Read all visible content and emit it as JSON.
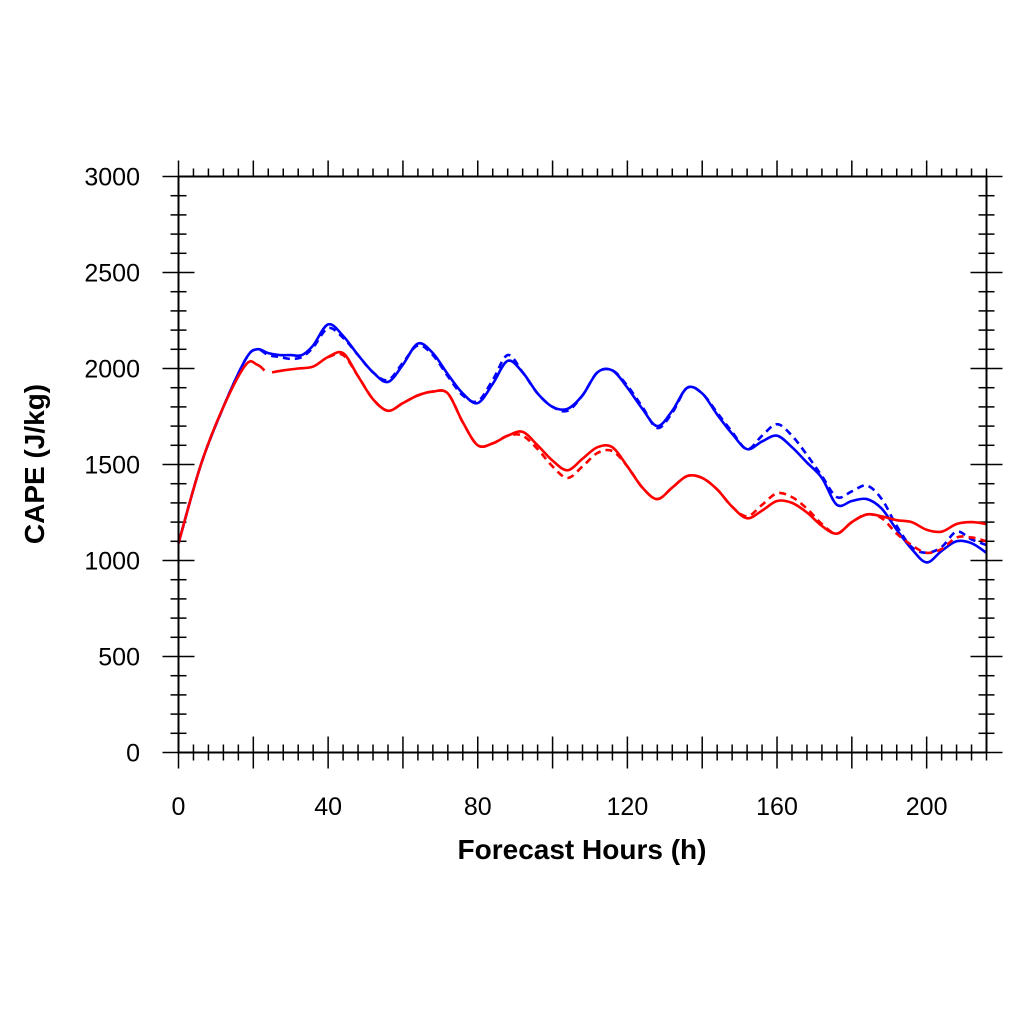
{
  "chart_data": {
    "type": "line",
    "title": "",
    "xlabel": "Forecast Hours (h)",
    "ylabel": "CAPE (J/kg)",
    "xlim": [
      0,
      216
    ],
    "ylim": [
      0,
      3000
    ],
    "xticks": [
      0,
      40,
      80,
      120,
      160,
      200
    ],
    "yticks": [
      0,
      500,
      1000,
      1500,
      2000,
      2500,
      3000
    ],
    "grid": false,
    "legend": "none",
    "series": [
      {
        "color": "#0000ff",
        "dash": "solid",
        "x": [
          0,
          6,
          12,
          18,
          21,
          24,
          27,
          30,
          33,
          36,
          40,
          44,
          48,
          52,
          56,
          60,
          64,
          68,
          72,
          76,
          80,
          84,
          88,
          92,
          96,
          100,
          104,
          108,
          112,
          116,
          120,
          124,
          128,
          132,
          136,
          140,
          144,
          148,
          152,
          156,
          160,
          164,
          168,
          172,
          176,
          180,
          184,
          188,
          192,
          196,
          200,
          204,
          208,
          212,
          216
        ],
        "y": [
          1090,
          1500,
          1800,
          2050,
          2100,
          2080,
          2070,
          2070,
          2070,
          2120,
          2230,
          2170,
          2070,
          1980,
          1930,
          2020,
          2130,
          2080,
          1970,
          1870,
          1820,
          1920,
          2040,
          1980,
          1870,
          1800,
          1790,
          1860,
          1980,
          1990,
          1900,
          1790,
          1700,
          1780,
          1900,
          1870,
          1760,
          1660,
          1580,
          1620,
          1650,
          1590,
          1510,
          1430,
          1290,
          1310,
          1320,
          1270,
          1160,
          1060,
          990,
          1050,
          1100,
          1090,
          1040
        ]
      },
      {
        "color": "#0000ff",
        "dash": "dashed",
        "x": [
          0,
          6,
          12,
          18,
          21,
          24,
          27,
          30,
          33,
          36,
          40,
          44,
          48,
          52,
          56,
          60,
          64,
          68,
          72,
          76,
          80,
          84,
          88,
          92,
          96,
          100,
          104,
          108,
          112,
          116,
          120,
          124,
          128,
          132,
          136,
          140,
          144,
          148,
          152,
          156,
          160,
          164,
          168,
          172,
          176,
          180,
          184,
          188,
          192,
          196,
          200,
          204,
          208,
          212,
          216
        ],
        "y": [
          1090,
          1500,
          1800,
          2050,
          2100,
          2070,
          2060,
          2050,
          2060,
          2110,
          2210,
          2160,
          2070,
          1980,
          1940,
          2030,
          2120,
          2070,
          1960,
          1860,
          1830,
          1940,
          2070,
          1980,
          1870,
          1800,
          1780,
          1860,
          1980,
          1990,
          1910,
          1800,
          1690,
          1770,
          1900,
          1870,
          1770,
          1670,
          1580,
          1650,
          1710,
          1650,
          1550,
          1440,
          1330,
          1360,
          1390,
          1320,
          1180,
          1070,
          1040,
          1070,
          1150,
          1110,
          1080
        ]
      },
      {
        "color": "#ff0000",
        "dash": "solid",
        "x": [
          0,
          6,
          12,
          18,
          21,
          23
        ],
        "y": [
          1090,
          1500,
          1800,
          2020,
          2020,
          1990
        ]
      },
      {
        "color": "#ff0000",
        "dash": "solid",
        "x": [
          25,
          28,
          32,
          36,
          40,
          44,
          48,
          52,
          56,
          60,
          64,
          68,
          72,
          76,
          80,
          84,
          88,
          92,
          96,
          100,
          104,
          108,
          112,
          116,
          120,
          124,
          128,
          132,
          136,
          140,
          144,
          148,
          152,
          156,
          160,
          164,
          168,
          172,
          176,
          180,
          184,
          188,
          192,
          196,
          200,
          204,
          208,
          212,
          216
        ],
        "y": [
          1980,
          1990,
          2000,
          2010,
          2060,
          2080,
          1960,
          1840,
          1780,
          1820,
          1860,
          1880,
          1870,
          1720,
          1600,
          1610,
          1650,
          1670,
          1600,
          1520,
          1470,
          1530,
          1590,
          1590,
          1490,
          1380,
          1320,
          1380,
          1440,
          1430,
          1370,
          1280,
          1220,
          1260,
          1310,
          1300,
          1250,
          1180,
          1140,
          1200,
          1240,
          1230,
          1210,
          1200,
          1160,
          1150,
          1190,
          1200,
          1190
        ]
      },
      {
        "color": "#ff0000",
        "dash": "dashed",
        "x": [
          40,
          44,
          48,
          52,
          56,
          60,
          64,
          68,
          72,
          76,
          80,
          84,
          88,
          92,
          96,
          100,
          104,
          108,
          112,
          116,
          120,
          124,
          128,
          132,
          136,
          140,
          144,
          148,
          152,
          156,
          160,
          164,
          168,
          172,
          176,
          180,
          184,
          188,
          192,
          196,
          200,
          204,
          208,
          212,
          216
        ],
        "y": [
          2060,
          2070,
          1960,
          1840,
          1780,
          1820,
          1860,
          1880,
          1870,
          1720,
          1600,
          1610,
          1650,
          1650,
          1580,
          1490,
          1430,
          1490,
          1560,
          1570,
          1490,
          1380,
          1320,
          1380,
          1440,
          1430,
          1370,
          1280,
          1230,
          1290,
          1350,
          1330,
          1270,
          1190,
          1140,
          1200,
          1240,
          1220,
          1140,
          1080,
          1040,
          1060,
          1120,
          1120,
          1100
        ]
      }
    ]
  }
}
